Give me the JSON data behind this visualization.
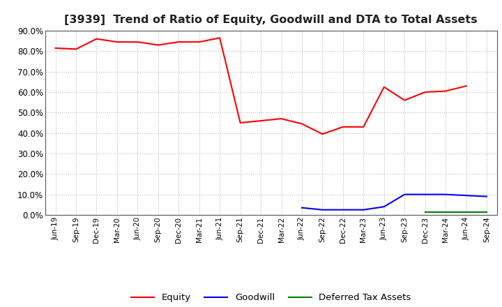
{
  "title": "[3939]  Trend of Ratio of Equity, Goodwill and DTA to Total Assets",
  "x_labels": [
    "Jun-19",
    "Sep-19",
    "Dec-19",
    "Mar-20",
    "Jun-20",
    "Sep-20",
    "Dec-20",
    "Mar-21",
    "Jun-21",
    "Sep-21",
    "Dec-21",
    "Mar-22",
    "Jun-22",
    "Sep-22",
    "Dec-22",
    "Mar-23",
    "Jun-23",
    "Sep-23",
    "Dec-23",
    "Mar-24",
    "Jun-24",
    "Sep-24"
  ],
  "equity": [
    81.5,
    81.0,
    86.0,
    84.5,
    84.5,
    83.0,
    84.5,
    84.5,
    86.5,
    45.0,
    46.0,
    47.0,
    44.5,
    39.5,
    43.0,
    43.0,
    62.5,
    56.0,
    60.0,
    60.5,
    63.0,
    null
  ],
  "goodwill": [
    null,
    null,
    null,
    null,
    null,
    null,
    null,
    null,
    null,
    null,
    null,
    null,
    3.5,
    2.5,
    2.5,
    2.5,
    4.0,
    10.0,
    10.0,
    10.0,
    9.5,
    9.0
  ],
  "dta": [
    null,
    null,
    null,
    null,
    null,
    null,
    null,
    null,
    null,
    null,
    null,
    null,
    null,
    null,
    null,
    null,
    null,
    null,
    1.5,
    1.5,
    1.5,
    1.5
  ],
  "equity_color": "#FF0000",
  "goodwill_color": "#0000FF",
  "dta_color": "#008000",
  "ylim": [
    0,
    90
  ],
  "yticks": [
    0,
    10,
    20,
    30,
    40,
    50,
    60,
    70,
    80,
    90
  ],
  "background_color": "#FFFFFF",
  "grid_color": "#BBBBBB",
  "title_fontsize": 11.5
}
